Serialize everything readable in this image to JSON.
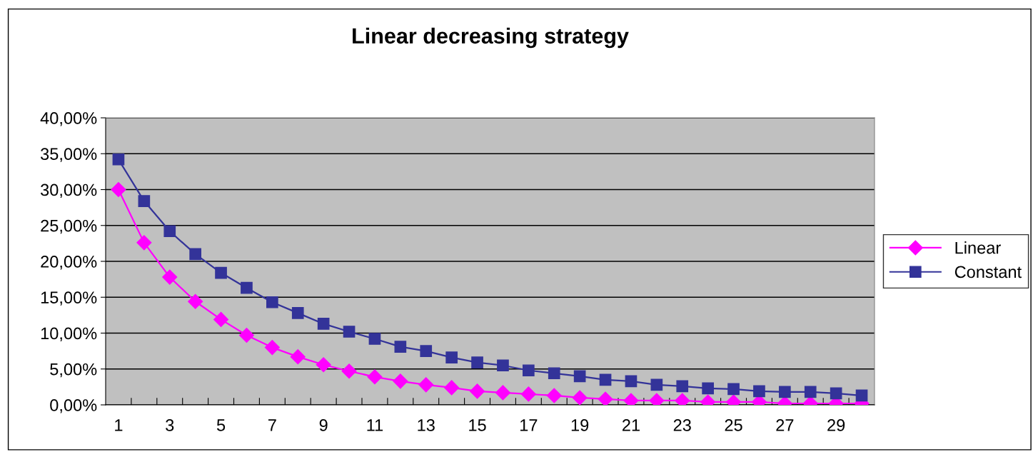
{
  "chart_data": {
    "type": "line",
    "title": "Linear decreasing strategy",
    "categories": [
      "1",
      null,
      "3",
      null,
      "5",
      null,
      "7",
      null,
      "9",
      null,
      "11",
      null,
      "13",
      null,
      "15",
      null,
      "17",
      null,
      "19",
      null,
      "21",
      null,
      "23",
      null,
      "25",
      null,
      "27",
      null,
      "29",
      null
    ],
    "series": [
      {
        "name": "Linear",
        "color": "#ff00ff",
        "marker": "diamond",
        "values": [
          30.0,
          22.6,
          17.8,
          14.4,
          11.9,
          9.7,
          8.0,
          6.7,
          5.6,
          4.7,
          3.9,
          3.3,
          2.8,
          2.4,
          1.9,
          1.7,
          1.5,
          1.3,
          1.0,
          0.8,
          0.6,
          0.6,
          0.6,
          0.4,
          0.4,
          0.4,
          0.2,
          0.2,
          0.2,
          0.2
        ]
      },
      {
        "name": "Constant",
        "color": "#333399",
        "marker": "square",
        "values": [
          34.2,
          28.4,
          24.2,
          21.0,
          18.4,
          16.3,
          14.3,
          12.8,
          11.3,
          10.2,
          9.2,
          8.1,
          7.5,
          6.6,
          5.9,
          5.5,
          4.8,
          4.4,
          4.0,
          3.5,
          3.3,
          2.8,
          2.6,
          2.3,
          2.2,
          1.9,
          1.8,
          1.8,
          1.6,
          1.3
        ]
      }
    ],
    "ylim": [
      0,
      40
    ],
    "yticks": [
      {
        "value": 0,
        "label": "0,00%"
      },
      {
        "value": 5,
        "label": "5,00%"
      },
      {
        "value": 10,
        "label": "10,00%"
      },
      {
        "value": 15,
        "label": "15,00%"
      },
      {
        "value": 20,
        "label": "20,00%"
      },
      {
        "value": 25,
        "label": "25,00%"
      },
      {
        "value": 30,
        "label": "30,00%"
      },
      {
        "value": 35,
        "label": "35,00%"
      },
      {
        "value": 40,
        "label": "40,00%"
      }
    ],
    "grid": "y",
    "legend": "right",
    "line_style": "solid"
  }
}
